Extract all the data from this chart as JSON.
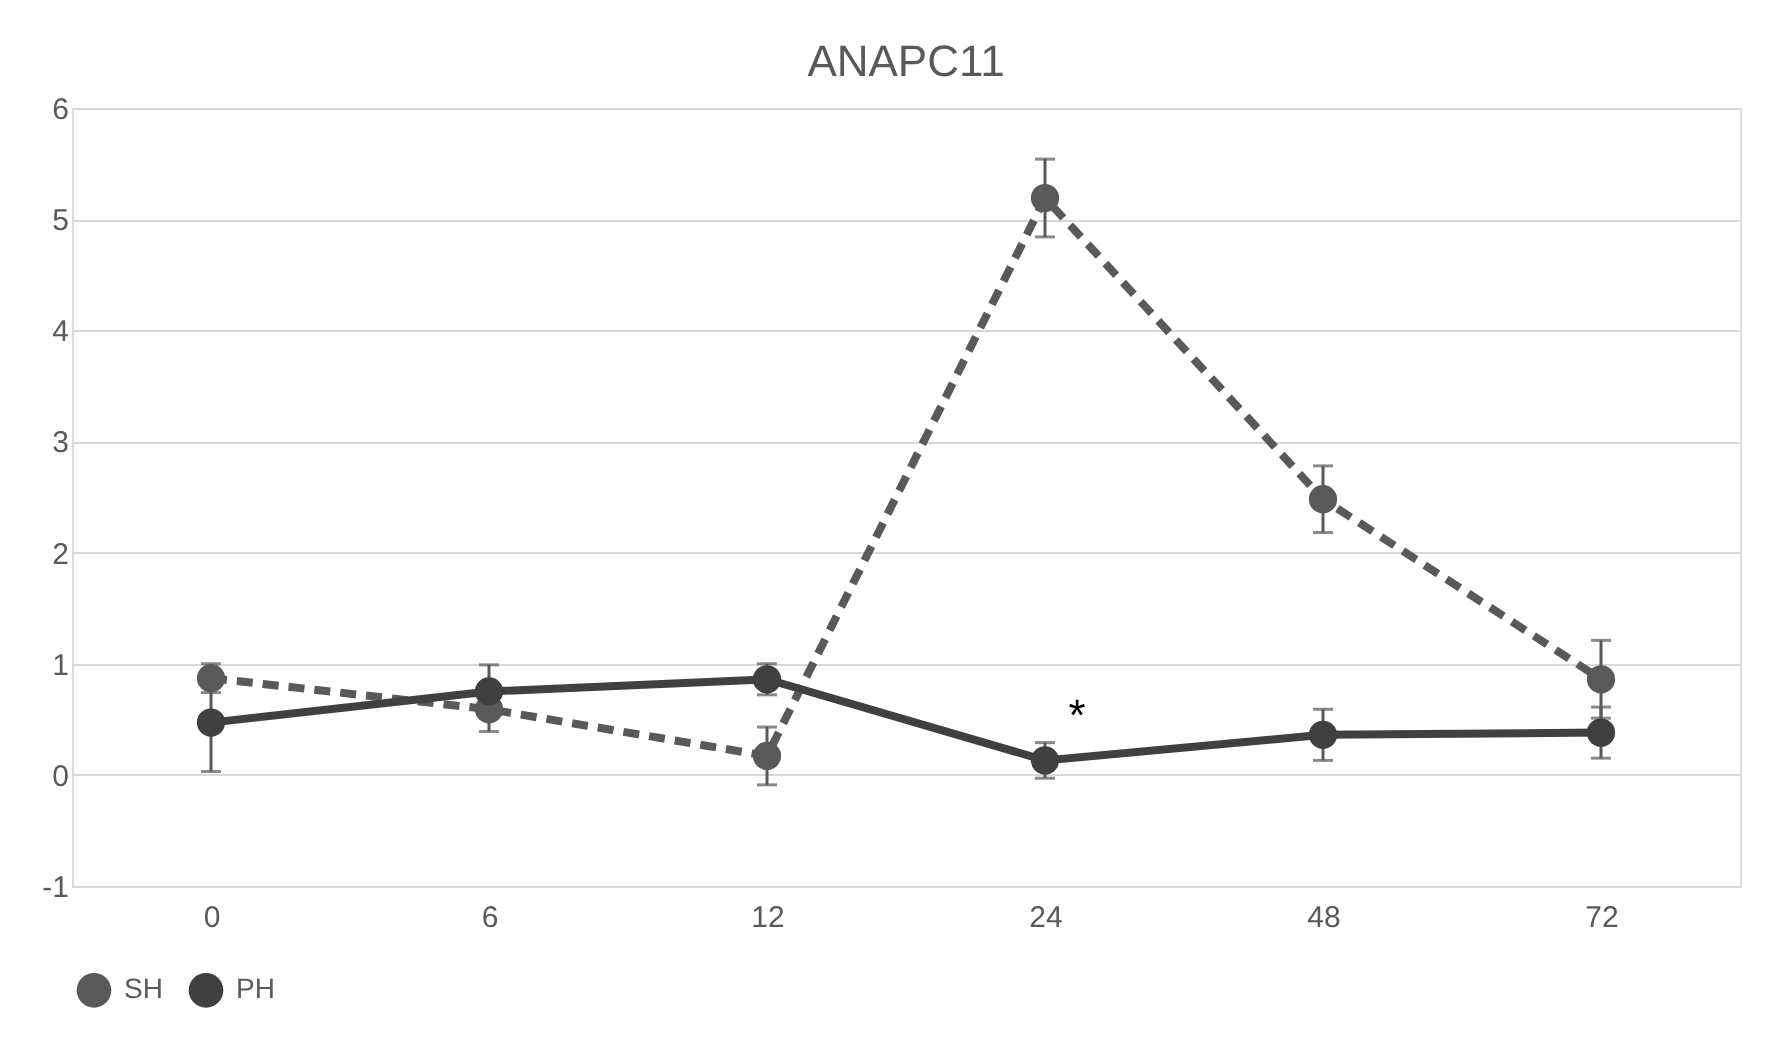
{
  "chart_data": {
    "type": "line",
    "title": "ANAPC11",
    "categories": [
      "0",
      "6",
      "12",
      "24",
      "48",
      "72"
    ],
    "series": [
      {
        "name": "SH",
        "color": "#595959",
        "line_style": "dashed",
        "values": [
          0.87,
          0.59,
          0.17,
          5.19,
          2.48,
          0.86
        ],
        "errors": [
          0.13,
          0.2,
          0.26,
          0.35,
          0.3,
          0.35
        ]
      },
      {
        "name": "PH",
        "color": "#404040",
        "line_style": "solid",
        "values": [
          0.47,
          0.75,
          0.86,
          0.13,
          0.36,
          0.38
        ],
        "errors": [
          0.44,
          0.24,
          0.14,
          0.16,
          0.23,
          0.23
        ]
      }
    ],
    "ylim": [
      -1,
      6
    ],
    "yticks": [
      -1,
      0,
      1,
      2,
      3,
      4,
      5,
      6
    ],
    "grid": "y",
    "legend": "bottom",
    "marker": "circle",
    "annotations": [
      {
        "text": "*",
        "x": "24",
        "y": 0.13
      }
    ]
  }
}
